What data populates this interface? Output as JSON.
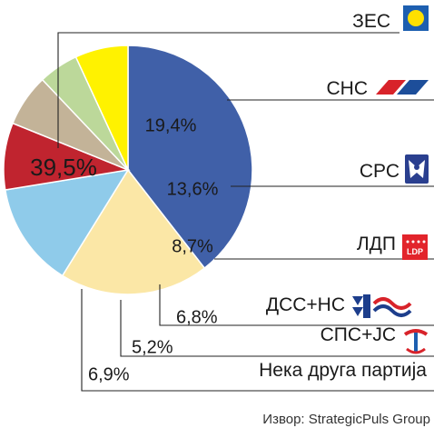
{
  "chart_data": {
    "type": "pie",
    "start_angle_deg": 0,
    "direction": "clockwise",
    "slices": [
      {
        "party": "ЗЕС",
        "value": 39.5,
        "label": "39,5%",
        "color": "#4060a8",
        "text_color": "#ffffff",
        "logo": "zes-logo-icon"
      },
      {
        "party": "СНС",
        "value": 19.4,
        "label": "19,4%",
        "color": "#fbe7a6",
        "text_color": "#1a1a1a",
        "logo": "sns-logo-icon"
      },
      {
        "party": "СРС",
        "value": 13.6,
        "label": "13,6%",
        "color": "#8fcbea",
        "text_color": "#1a1a1a",
        "logo": "srs-logo-icon"
      },
      {
        "party": "ЛДП",
        "value": 8.7,
        "label": "8,7%",
        "color": "#c0242f",
        "text_color": "#ffffff",
        "logo": "ldp-logo-icon"
      },
      {
        "party": "ДСС+НС",
        "value": 6.8,
        "label": "6,8%",
        "color": "#c3b398",
        "text_color": "#1a1a1a",
        "logo": "dss-ns-logo-icon"
      },
      {
        "party": "СПС+ЈС",
        "value": 5.2,
        "label": "5,2%",
        "color": "#bcd89a",
        "text_color": "#1a1a1a",
        "logo": "sps-js-logo-icon"
      },
      {
        "party": "Нека друга партија",
        "value": 6.9,
        "label": "6,9%",
        "color": "#fff200",
        "text_color": "#1a1a1a",
        "logo": ""
      }
    ],
    "source": "Извор: StrategicPuls Group",
    "ldp_logo_text": "LDP"
  }
}
